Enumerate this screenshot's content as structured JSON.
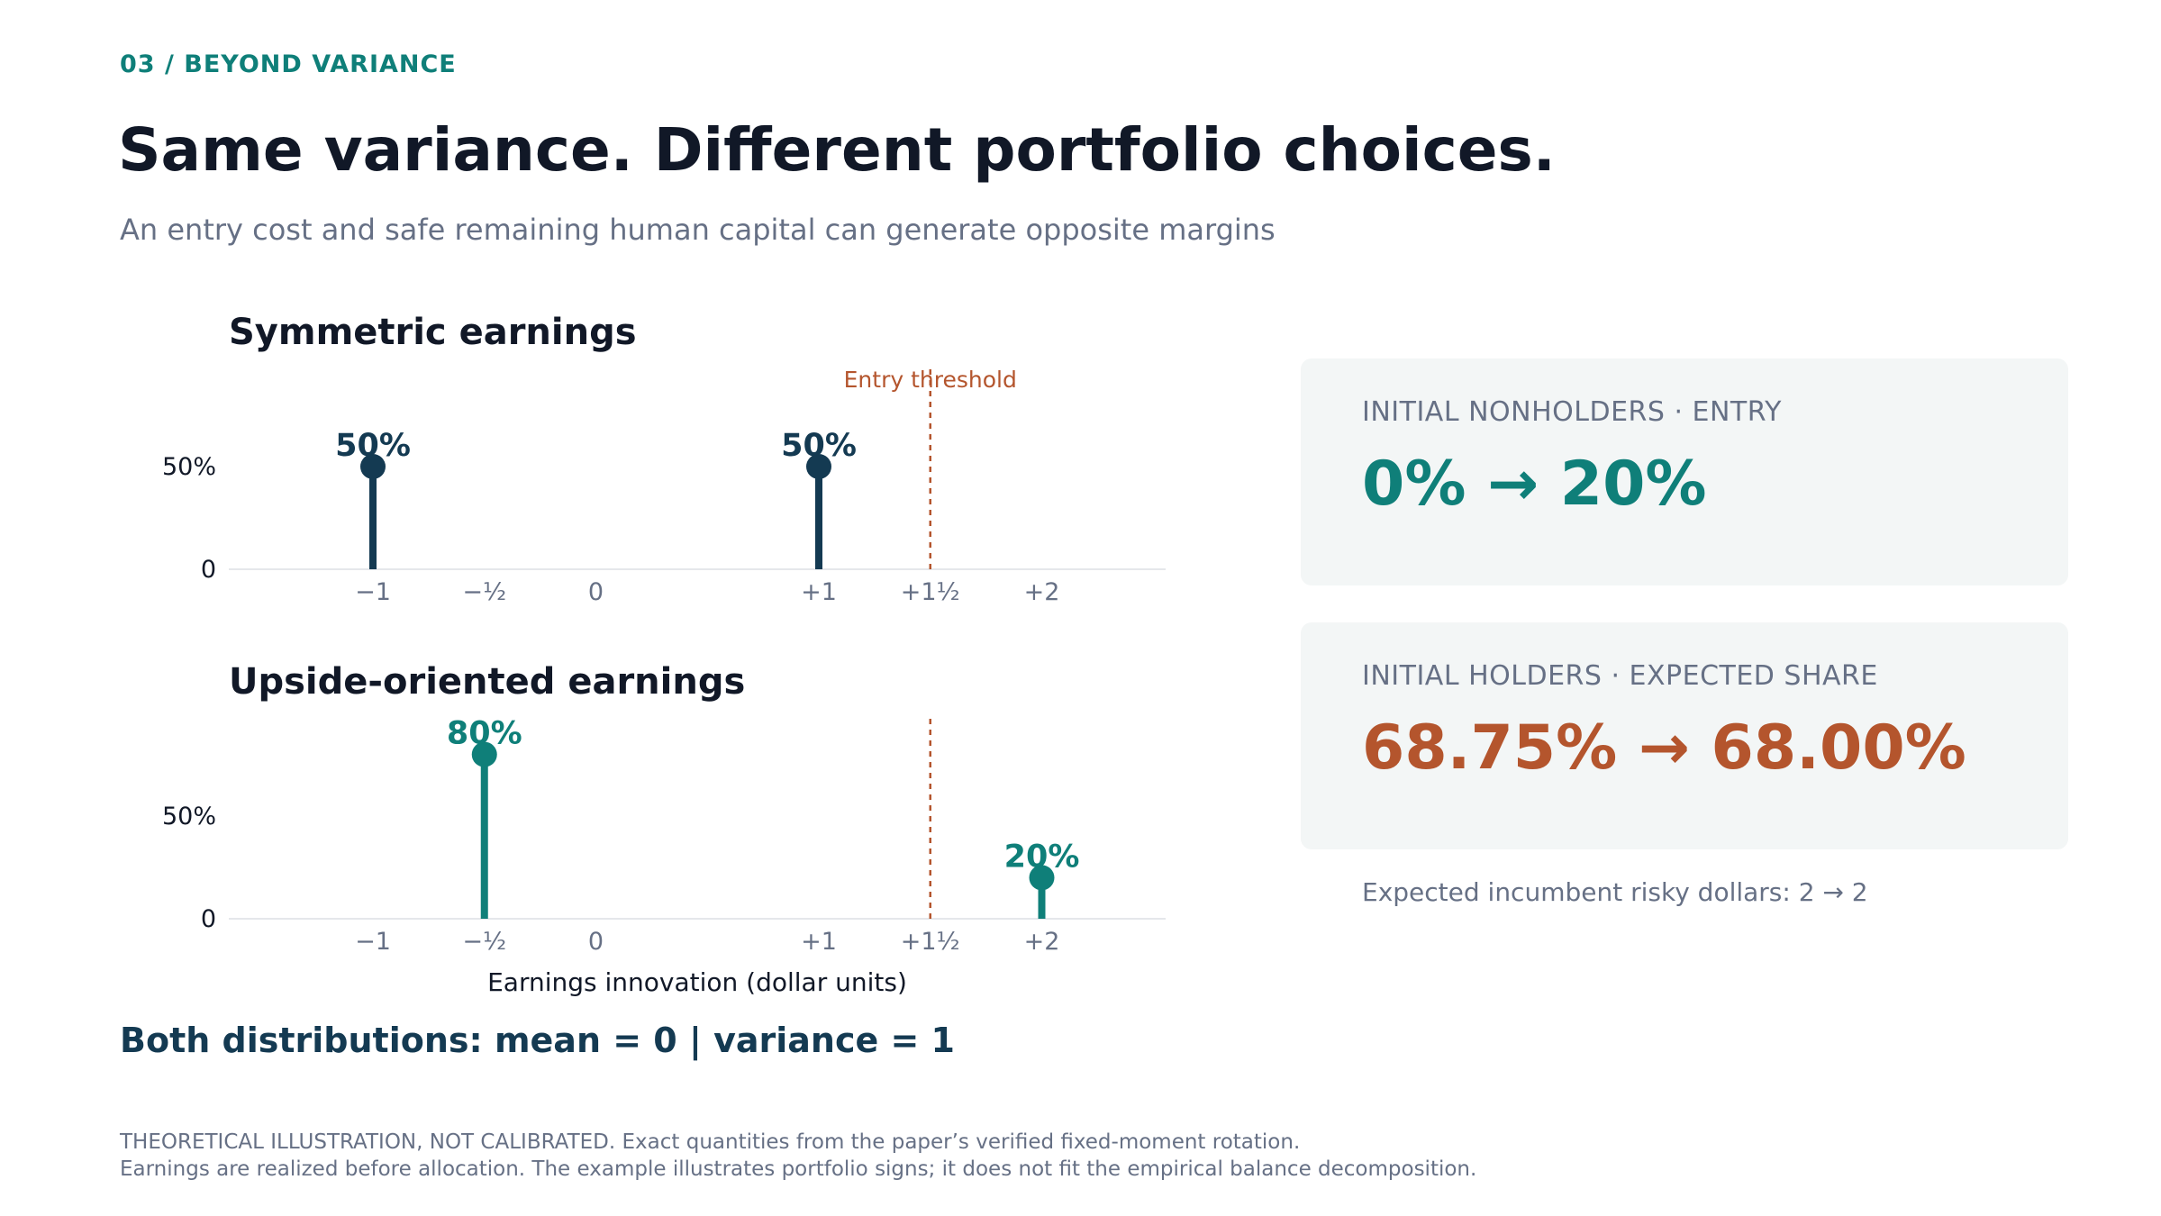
{
  "header": {
    "kicker": "03  /  BEYOND VARIANCE",
    "title": "Same variance. Different portfolio choices.",
    "subtitle": "An entry cost and safe remaining human capital can generate opposite margins"
  },
  "colors": {
    "navy": "#143a52",
    "teal": "#0f7f79",
    "rust": "#b4552d",
    "muted": "#667085",
    "card_bg": "#f3f6f6"
  },
  "chart_data": [
    {
      "type": "stem",
      "title": "Symmetric earnings",
      "xlabel": "",
      "x_ticks": [
        {
          "value": -1,
          "label": "−1"
        },
        {
          "value": -0.5,
          "label": "−½"
        },
        {
          "value": 0,
          "label": "0"
        },
        {
          "value": 1,
          "label": "+1"
        },
        {
          "value": 1.5,
          "label": "+1½"
        },
        {
          "value": 2,
          "label": "+2"
        }
      ],
      "y_ticks": [
        {
          "value": 0,
          "label": "0"
        },
        {
          "value": 50,
          "label": "50%"
        }
      ],
      "xlim": [
        -2.3,
        2.6
      ],
      "ylim": [
        0,
        100
      ],
      "threshold": {
        "x": 1.5,
        "label": "Entry threshold"
      },
      "series": [
        {
          "color": "#143a52",
          "points": [
            {
              "x": -1,
              "y": 50,
              "label": "50%"
            },
            {
              "x": 1,
              "y": 50,
              "label": "50%"
            }
          ]
        }
      ]
    },
    {
      "type": "stem",
      "title": "Upside-oriented earnings",
      "xlabel": "Earnings innovation (dollar units)",
      "x_ticks": [
        {
          "value": -1,
          "label": "−1"
        },
        {
          "value": -0.5,
          "label": "−½"
        },
        {
          "value": 0,
          "label": "0"
        },
        {
          "value": 1,
          "label": "+1"
        },
        {
          "value": 1.5,
          "label": "+1½"
        },
        {
          "value": 2,
          "label": "+2"
        }
      ],
      "y_ticks": [
        {
          "value": 0,
          "label": "0"
        },
        {
          "value": 50,
          "label": "50%"
        }
      ],
      "xlim": [
        -2.3,
        2.6
      ],
      "ylim": [
        0,
        100
      ],
      "threshold": {
        "x": 1.5,
        "label": ""
      },
      "series": [
        {
          "color": "#0f7f79",
          "points": [
            {
              "x": -0.5,
              "y": 80,
              "label": "80%"
            },
            {
              "x": 2,
              "y": 20,
              "label": "20%"
            }
          ]
        }
      ]
    }
  ],
  "cards": [
    {
      "label": "INITIAL NONHOLDERS · ENTRY",
      "value": "0% → 20%",
      "color": "#0f7f79"
    },
    {
      "label": "INITIAL HOLDERS · EXPECTED SHARE",
      "value": "68.75% → 68.00%",
      "color": "#b4552d"
    }
  ],
  "note": "Expected incumbent risky dollars: 2 → 2",
  "summary": "Both distributions:  mean = 0  |  variance = 1",
  "footnote": {
    "line1": "THEORETICAL ILLUSTRATION, NOT CALIBRATED. Exact quantities from the paper’s verified fixed-moment rotation.",
    "line2": "Earnings are realized before allocation. The example illustrates portfolio signs; it does not fit the empirical balance decomposition."
  }
}
